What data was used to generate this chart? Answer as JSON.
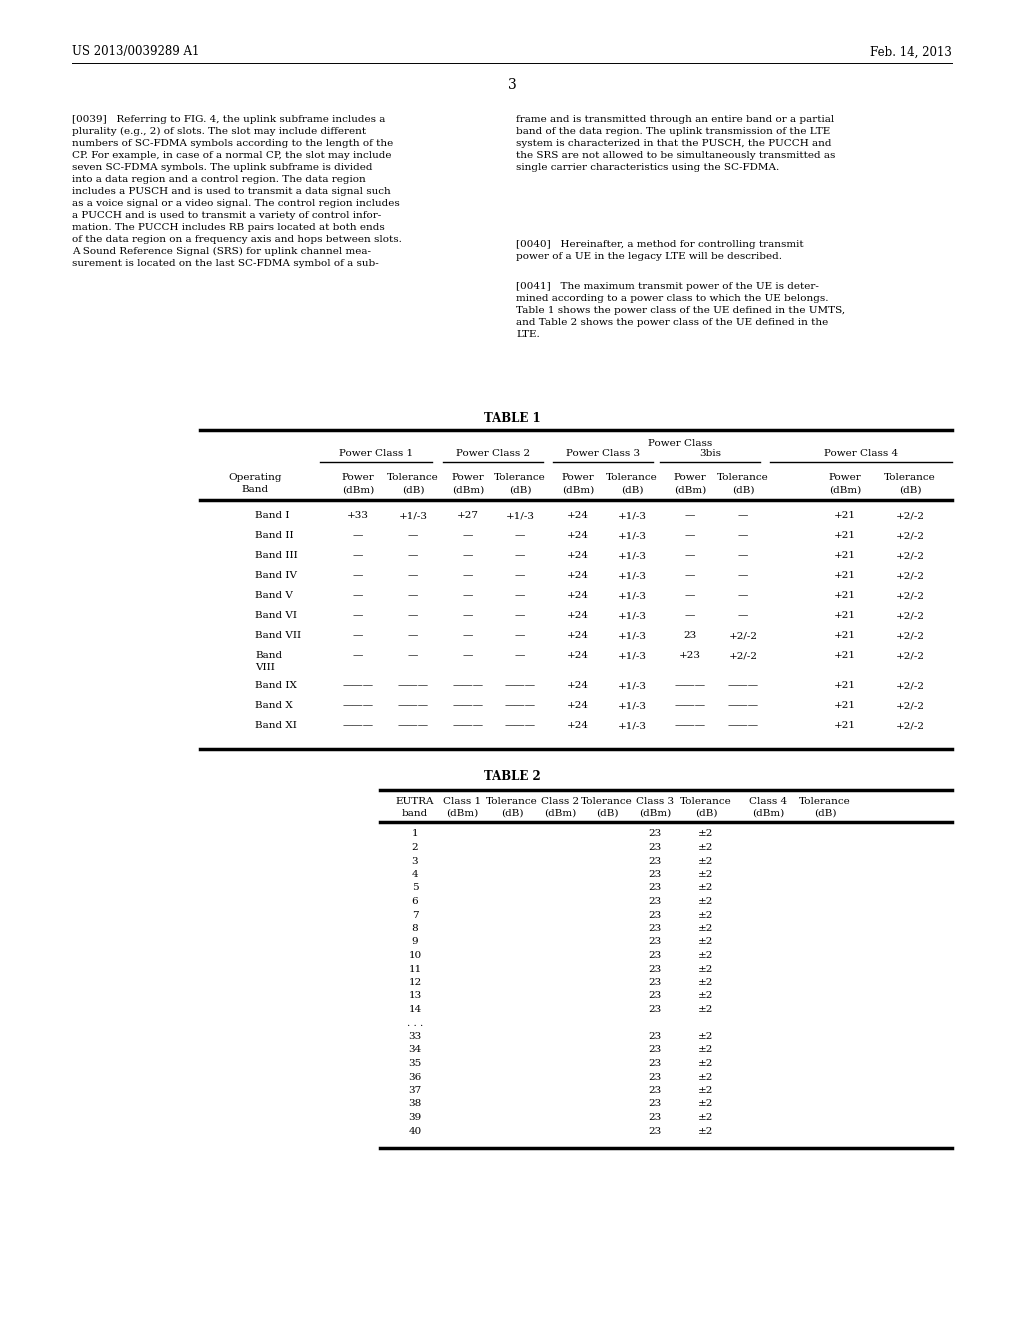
{
  "header_text": "US 2013/0039289 A1",
  "date_text": "Feb. 14, 2013",
  "page_num": "3",
  "background_color": "#ffffff",
  "left_col_text": "[0039]   Referring to FIG. 4, the uplink subframe includes a\nplurality (e.g., 2) of slots. The slot may include different\nnumbers of SC-FDMA symbols according to the length of the\nCP. For example, in case of a normal CP, the slot may include\nseven SC-FDMA symbols. The uplink subframe is divided\ninto a data region and a control region. The data region\nincludes a PUSCH and is used to transmit a data signal such\nas a voice signal or a video signal. The control region includes\na PUCCH and is used to transmit a variety of control infor-\nmation. The PUCCH includes RB pairs located at both ends\nof the data region on a frequency axis and hops between slots.\nA Sound Reference Signal (SRS) for uplink channel mea-\nsurement is located on the last SC-FDMA symbol of a sub-",
  "right_col_text1": "frame and is transmitted through an entire band or a partial\nband of the data region. The uplink transmission of the LTE\nsystem is characterized in that the PUSCH, the PUCCH and\nthe SRS are not allowed to be simultaneously transmitted as\nsingle carrier characteristics using the SC-FDMA.",
  "right_col_text2": "[0040]   Hereinafter, a method for controlling transmit\npower of a UE in the legacy LTE will be described.",
  "right_col_text3": "[0041]   The maximum transmit power of the UE is deter-\nmined according to a power class to which the UE belongs.\nTable 1 shows the power class of the UE defined in the UMTS,\nand Table 2 shows the power class of the UE defined in the\nLTE.",
  "table1_title": "TABLE 1",
  "table2_title": "TABLE 2",
  "t1_group_labels": [
    "Power Class 1",
    "Power Class 2",
    "Power Class 3",
    "3bis",
    "Power Class 4"
  ],
  "t1_col_r1": [
    "Operating",
    "Power",
    "Tolerance",
    "Power",
    "Tolerance",
    "Power",
    "Tolerance",
    "Power",
    "Tolerance",
    "Power",
    "Tolerance"
  ],
  "t1_col_r2": [
    "Band",
    "(dBm)",
    "(dB)",
    "(dBm)",
    "(dB)",
    "(dBm)",
    "(dB)",
    "(dBm)",
    "(dB)",
    "(dBm)",
    "(dB)"
  ],
  "t1_band_labels": [
    "Band I",
    "Band II",
    "Band III",
    "Band IV",
    "Band V",
    "Band VI",
    "Band VII",
    "Band",
    "Band IX",
    "Band X",
    "Band XI"
  ],
  "t1_band_label2": [
    "",
    "",
    "",
    "",
    "",
    "",
    "",
    "VIII",
    "",
    "",
    ""
  ],
  "t1_rows": [
    [
      "+33",
      "+1/-3",
      "+27",
      "+1/-3",
      "+24",
      "+1/-3",
      "—",
      "—",
      "+21",
      "+2/-2"
    ],
    [
      "—",
      "—",
      "—",
      "—",
      "+24",
      "+1/-3",
      "—",
      "—",
      "+21",
      "+2/-2"
    ],
    [
      "—",
      "—",
      "—",
      "—",
      "+24",
      "+1/-3",
      "—",
      "—",
      "+21",
      "+2/-2"
    ],
    [
      "—",
      "—",
      "—",
      "—",
      "+24",
      "+1/-3",
      "—",
      "—",
      "+21",
      "+2/-2"
    ],
    [
      "—",
      "—",
      "—",
      "—",
      "+24",
      "+1/-3",
      "—",
      "—",
      "+21",
      "+2/-2"
    ],
    [
      "—",
      "—",
      "—",
      "—",
      "+24",
      "+1/-3",
      "—",
      "—",
      "+21",
      "+2/-2"
    ],
    [
      "—",
      "—",
      "—",
      "—",
      "+24",
      "+1/-3",
      "23",
      "+2/-2",
      "+21",
      "+2/-2"
    ],
    [
      "—",
      "—",
      "—",
      "—",
      "+24",
      "+1/-3",
      "+23",
      "+2/-2",
      "+21",
      "+2/-2"
    ],
    [
      "———",
      "———",
      "———",
      "———",
      "+24",
      "+1/-3",
      "———",
      "———",
      "+21",
      "+2/-2"
    ],
    [
      "———",
      "———",
      "———",
      "———",
      "+24",
      "+1/-3",
      "———",
      "———",
      "+21",
      "+2/-2"
    ],
    [
      "———",
      "———",
      "———",
      "———",
      "+24",
      "+1/-3",
      "———",
      "———",
      "+21",
      "+2/-2"
    ]
  ],
  "t2_col_r1": [
    "EUTRA",
    "Class 1",
    "Tolerance",
    "Class 2",
    "Tolerance",
    "Class 3",
    "Tolerance",
    "Class 4",
    "Tolerance"
  ],
  "t2_col_r2": [
    "band",
    "(dBm)",
    "(dB)",
    "(dBm)",
    "(dB)",
    "(dBm)",
    "(dB)",
    "(dBm)",
    "(dB)"
  ],
  "t2_rows": [
    [
      "1",
      "",
      "",
      "",
      "",
      "23",
      "±2",
      "",
      ""
    ],
    [
      "2",
      "",
      "",
      "",
      "",
      "23",
      "±2",
      "",
      ""
    ],
    [
      "3",
      "",
      "",
      "",
      "",
      "23",
      "±2",
      "",
      ""
    ],
    [
      "4",
      "",
      "",
      "",
      "",
      "23",
      "±2",
      "",
      ""
    ],
    [
      "5",
      "",
      "",
      "",
      "",
      "23",
      "±2",
      "",
      ""
    ],
    [
      "6",
      "",
      "",
      "",
      "",
      "23",
      "±2",
      "",
      ""
    ],
    [
      "7",
      "",
      "",
      "",
      "",
      "23",
      "±2",
      "",
      ""
    ],
    [
      "8",
      "",
      "",
      "",
      "",
      "23",
      "±2",
      "",
      ""
    ],
    [
      "9",
      "",
      "",
      "",
      "",
      "23",
      "±2",
      "",
      ""
    ],
    [
      "10",
      "",
      "",
      "",
      "",
      "23",
      "±2",
      "",
      ""
    ],
    [
      "11",
      "",
      "",
      "",
      "",
      "23",
      "±2",
      "",
      ""
    ],
    [
      "12",
      "",
      "",
      "",
      "",
      "23",
      "±2",
      "",
      ""
    ],
    [
      "13",
      "",
      "",
      "",
      "",
      "23",
      "±2",
      "",
      ""
    ],
    [
      "14",
      "",
      "",
      "",
      "",
      "23",
      "±2",
      "",
      ""
    ],
    [
      ". . .",
      "",
      "",
      "",
      "",
      "",
      "",
      "",
      ""
    ],
    [
      "33",
      "",
      "",
      "",
      "",
      "23",
      "±2",
      "",
      ""
    ],
    [
      "34",
      "",
      "",
      "",
      "",
      "23",
      "±2",
      "",
      ""
    ],
    [
      "35",
      "",
      "",
      "",
      "",
      "23",
      "±2",
      "",
      ""
    ],
    [
      "36",
      "",
      "",
      "",
      "",
      "23",
      "±2",
      "",
      ""
    ],
    [
      "37",
      "",
      "",
      "",
      "",
      "23",
      "±2",
      "",
      ""
    ],
    [
      "38",
      "",
      "",
      "",
      "",
      "23",
      "±2",
      "",
      ""
    ],
    [
      "39",
      "",
      "",
      "",
      "",
      "23",
      "±2",
      "",
      ""
    ],
    [
      "40",
      "",
      "",
      "",
      "",
      "23",
      "±2",
      "",
      ""
    ]
  ]
}
